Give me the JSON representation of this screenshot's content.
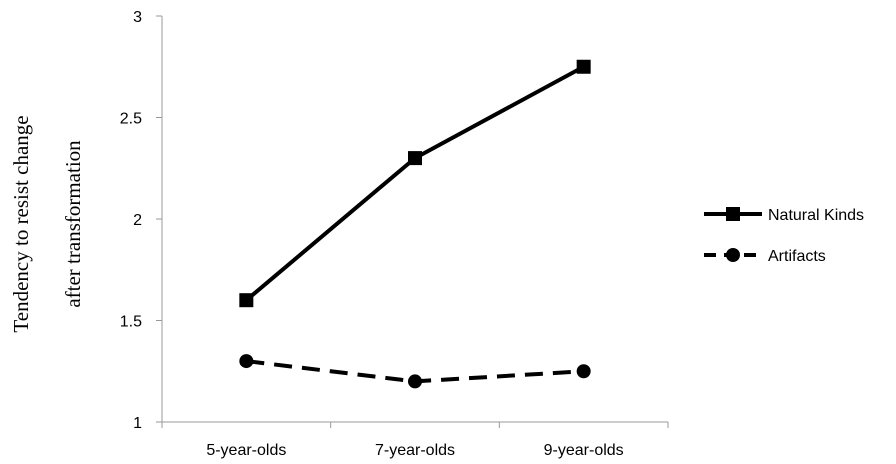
{
  "chart_data": {
    "type": "line",
    "categories": [
      "5-year-olds",
      "7-year-olds",
      "9-year-olds"
    ],
    "series": [
      {
        "name": "Natural Kinds",
        "values": [
          1.6,
          2.3,
          2.75
        ],
        "line_style": "solid",
        "marker": "square",
        "color": "#000000"
      },
      {
        "name": "Artifacts",
        "values": [
          1.3,
          1.2,
          1.25
        ],
        "line_style": "dashed",
        "marker": "circle",
        "color": "#000000"
      }
    ],
    "title": "",
    "xlabel": "",
    "ylabel_lines": [
      "Tendency to resist change",
      "after transformation"
    ],
    "ylim": [
      1,
      3
    ],
    "yticks": [
      "1",
      "1.5",
      "2",
      "2.5",
      "3"
    ],
    "grid": false,
    "legend_position": "right"
  }
}
